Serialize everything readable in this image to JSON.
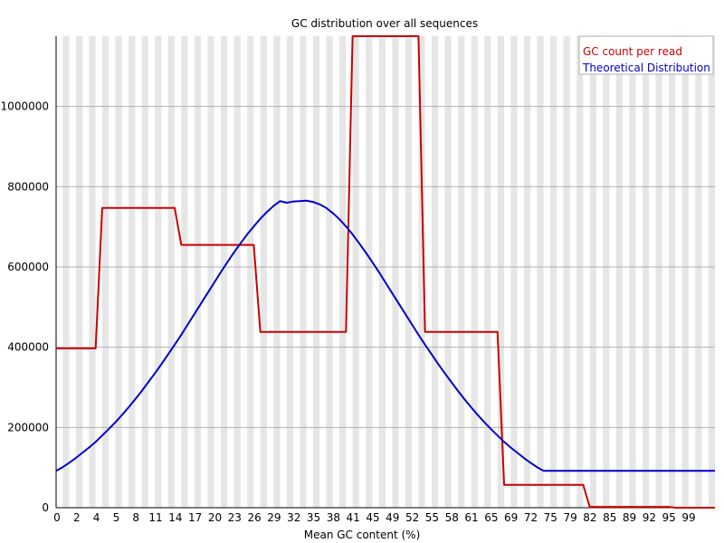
{
  "chart_data": {
    "type": "line",
    "title": "GC distribution over all sequences",
    "xlabel": "Mean GC content (%)",
    "ylabel": "",
    "xlim": [
      0,
      100
    ],
    "ylim": [
      0,
      1175000
    ],
    "grid": true,
    "legend_position": "top-right",
    "x_tick_labels": [
      "0",
      "2",
      "4",
      "5",
      "8",
      "11",
      "14",
      "17",
      "20",
      "23",
      "26",
      "29",
      "32",
      "35",
      "38",
      "41",
      "45",
      "49",
      "52",
      "55",
      "58",
      "61",
      "65",
      "69",
      "72",
      "75",
      "79",
      "82",
      "85",
      "89",
      "92",
      "95",
      "99"
    ],
    "y_ticks": [
      0,
      200000,
      400000,
      600000,
      800000,
      1000000
    ],
    "y_tick_labels": [
      "0",
      "200000",
      "400000",
      "600000",
      "800000",
      "1000000"
    ],
    "series": [
      {
        "name": "GC count per read",
        "color": "#cc0000",
        "x": [
          0,
          1,
          2,
          3,
          4,
          5,
          6,
          7,
          8,
          9,
          10,
          11,
          12,
          13,
          14,
          15,
          16,
          17,
          18,
          19,
          20,
          21,
          22,
          23,
          24,
          25,
          26,
          27,
          28,
          29,
          30,
          31,
          32,
          33,
          34,
          35,
          36,
          37,
          38,
          39,
          40,
          41,
          42,
          43,
          44,
          45,
          46,
          47,
          48,
          49,
          50,
          51,
          52,
          53,
          54,
          55,
          56,
          57,
          58,
          59,
          60,
          61,
          62,
          63,
          64,
          65,
          66,
          67,
          68,
          69,
          70,
          71,
          72,
          73,
          74,
          75,
          76,
          77,
          78,
          79,
          80,
          81,
          82,
          83,
          84,
          85,
          86,
          87,
          88,
          89,
          90,
          91,
          92,
          93,
          94,
          95,
          96,
          97,
          98,
          99,
          100
        ],
        "values": [
          397000,
          397000,
          397000,
          397000,
          397000,
          397000,
          397000,
          747000,
          747000,
          747000,
          747000,
          747000,
          747000,
          747000,
          747000,
          747000,
          747000,
          747000,
          747000,
          655000,
          655000,
          655000,
          655000,
          655000,
          655000,
          655000,
          655000,
          655000,
          655000,
          655000,
          655000,
          438000,
          438000,
          438000,
          438000,
          438000,
          438000,
          438000,
          438000,
          438000,
          438000,
          438000,
          438000,
          438000,
          438000,
          1175000,
          1175000,
          1175000,
          1175000,
          1175000,
          1175000,
          1175000,
          1175000,
          1175000,
          1175000,
          1175000,
          438000,
          438000,
          438000,
          438000,
          438000,
          438000,
          438000,
          438000,
          438000,
          438000,
          438000,
          438000,
          57000,
          57000,
          57000,
          57000,
          57000,
          57000,
          57000,
          57000,
          57000,
          57000,
          57000,
          57000,
          57000,
          2000,
          2000,
          2000,
          2000,
          2000,
          2000,
          2000,
          2000,
          2000,
          2000,
          2000,
          2000,
          2000,
          0,
          0,
          0,
          0,
          0,
          0,
          0
        ]
      },
      {
        "name": "Theoretical Distribution",
        "color": "#0000cc",
        "x": [
          0,
          1,
          2,
          3,
          4,
          5,
          6,
          7,
          8,
          9,
          10,
          11,
          12,
          13,
          14,
          15,
          16,
          17,
          18,
          19,
          20,
          21,
          22,
          23,
          24,
          25,
          26,
          27,
          28,
          29,
          30,
          31,
          32,
          33,
          34,
          35,
          36,
          37,
          38,
          39,
          40,
          41,
          42,
          43,
          44,
          45,
          46,
          47,
          48,
          49,
          50,
          51,
          52,
          53,
          54,
          55,
          56,
          57,
          58,
          59,
          60,
          61,
          62,
          63,
          64,
          65,
          66,
          67,
          68,
          69,
          70,
          71,
          72,
          73,
          74,
          75,
          76,
          77,
          78,
          79,
          80,
          81,
          82,
          83,
          84,
          85,
          86,
          87,
          88,
          89,
          90,
          91,
          92,
          93,
          94,
          95,
          96,
          97,
          98,
          99,
          100
        ],
        "values": [
          92000,
          101000,
          112000,
          124000,
          137000,
          150000,
          164000,
          180000,
          196000,
          213000,
          231000,
          250000,
          270000,
          291000,
          313000,
          335000,
          358000,
          382000,
          406000,
          431000,
          457000,
          483000,
          509000,
          535000,
          561000,
          587000,
          612000,
          636000,
          659000,
          681000,
          701000,
          720000,
          737000,
          752000,
          764000,
          760000,
          763000,
          764000,
          765000,
          762000,
          756000,
          747000,
          734000,
          719000,
          701000,
          681000,
          659000,
          636000,
          612000,
          587000,
          561000,
          535000,
          509000,
          483000,
          457000,
          431000,
          406000,
          382000,
          358000,
          335000,
          313000,
          291000,
          270000,
          250000,
          231000,
          213000,
          196000,
          180000,
          164000,
          150000,
          137000,
          124000,
          112000,
          101000,
          92000,
          92000,
          92000,
          92000,
          92000,
          92000,
          92000,
          92000,
          92000,
          92000,
          92000,
          92000,
          92000,
          92000,
          92000,
          92000,
          92000,
          92000,
          92000,
          92000,
          92000,
          92000,
          92000,
          92000,
          92000,
          92000,
          92000
        ]
      }
    ]
  }
}
